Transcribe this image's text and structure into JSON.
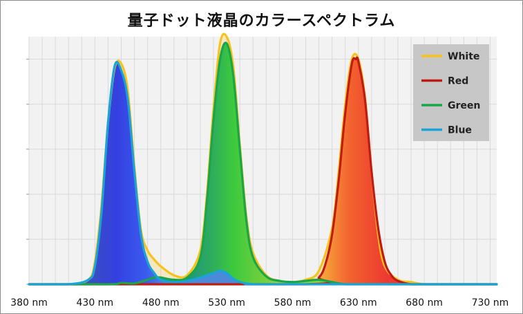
{
  "title": "量子ドット液晶のカラースペクトラム",
  "chart_data": {
    "type": "area",
    "title": "量子ドット液晶のカラースペクトラム",
    "xlabel": "",
    "ylabel": "",
    "x_ticks": [
      380,
      430,
      480,
      530,
      580,
      630,
      680,
      730
    ],
    "x_tick_labels": [
      "380 nm",
      "430 nm",
      "480 nm",
      "530 nm",
      "580 nm",
      "630 nm",
      "680 nm",
      "730 nm"
    ],
    "xlim": [
      380,
      735
    ],
    "ylim": [
      0,
      1.1
    ],
    "grid": true,
    "legend_position": "top-right",
    "series": [
      {
        "name": "White",
        "color": "#f6c21c",
        "x": [
          380,
          410,
          425,
          430,
          435,
          440,
          445,
          450,
          455,
          460,
          465,
          470,
          475,
          480,
          490,
          500,
          510,
          515,
          520,
          525,
          530,
          535,
          540,
          545,
          550,
          560,
          570,
          580,
          590,
          600,
          610,
          615,
          620,
          625,
          630,
          635,
          640,
          645,
          650,
          660,
          670,
          680,
          700,
          735
        ],
        "y": [
          0,
          0,
          0.02,
          0.1,
          0.35,
          0.72,
          0.96,
          0.98,
          0.86,
          0.52,
          0.24,
          0.15,
          0.11,
          0.08,
          0.04,
          0.04,
          0.15,
          0.4,
          0.78,
          1.07,
          1.1,
          0.97,
          0.62,
          0.3,
          0.14,
          0.04,
          0.015,
          0.01,
          0.02,
          0.06,
          0.25,
          0.5,
          0.8,
          1.0,
          1.0,
          0.83,
          0.5,
          0.22,
          0.08,
          0.02,
          0.01,
          0,
          0,
          0
        ]
      },
      {
        "name": "Red",
        "color": "#c01b12",
        "x": [
          380,
          590,
          600,
          605,
          610,
          615,
          620,
          625,
          628,
          630,
          635,
          640,
          645,
          650,
          655,
          660,
          670,
          680,
          735
        ],
        "y": [
          0,
          0,
          0.03,
          0.09,
          0.22,
          0.46,
          0.76,
          0.98,
          1.0,
          0.99,
          0.82,
          0.5,
          0.25,
          0.1,
          0.04,
          0.015,
          0,
          0,
          0
        ]
      },
      {
        "name": "Green",
        "color": "#19a64a",
        "x": [
          380,
          440,
          450,
          460,
          470,
          475,
          480,
          490,
          500,
          510,
          515,
          520,
          525,
          530,
          535,
          540,
          545,
          550,
          560,
          570,
          580,
          590,
          600,
          610,
          620,
          640,
          735
        ],
        "y": [
          0,
          0,
          0.006,
          0.004,
          0.02,
          0.03,
          0.03,
          0.02,
          0.03,
          0.12,
          0.37,
          0.73,
          1.0,
          1.07,
          0.93,
          0.6,
          0.28,
          0.12,
          0.035,
          0.015,
          0.01,
          0.015,
          0.02,
          0.01,
          0,
          0,
          0
        ]
      },
      {
        "name": "Blue",
        "color": "#1aa3d9",
        "x": [
          380,
          410,
          425,
          430,
          435,
          440,
          445,
          450,
          455,
          460,
          465,
          470,
          475,
          480,
          490,
          500,
          510,
          520,
          525,
          530,
          535,
          540,
          550,
          560,
          735
        ],
        "y": [
          0,
          0,
          0.02,
          0.08,
          0.32,
          0.72,
          0.97,
          0.95,
          0.82,
          0.5,
          0.22,
          0.1,
          0.05,
          0.02,
          0.01,
          0.015,
          0.03,
          0.05,
          0.06,
          0.05,
          0.025,
          0.01,
          0,
          0,
          0
        ]
      }
    ]
  }
}
